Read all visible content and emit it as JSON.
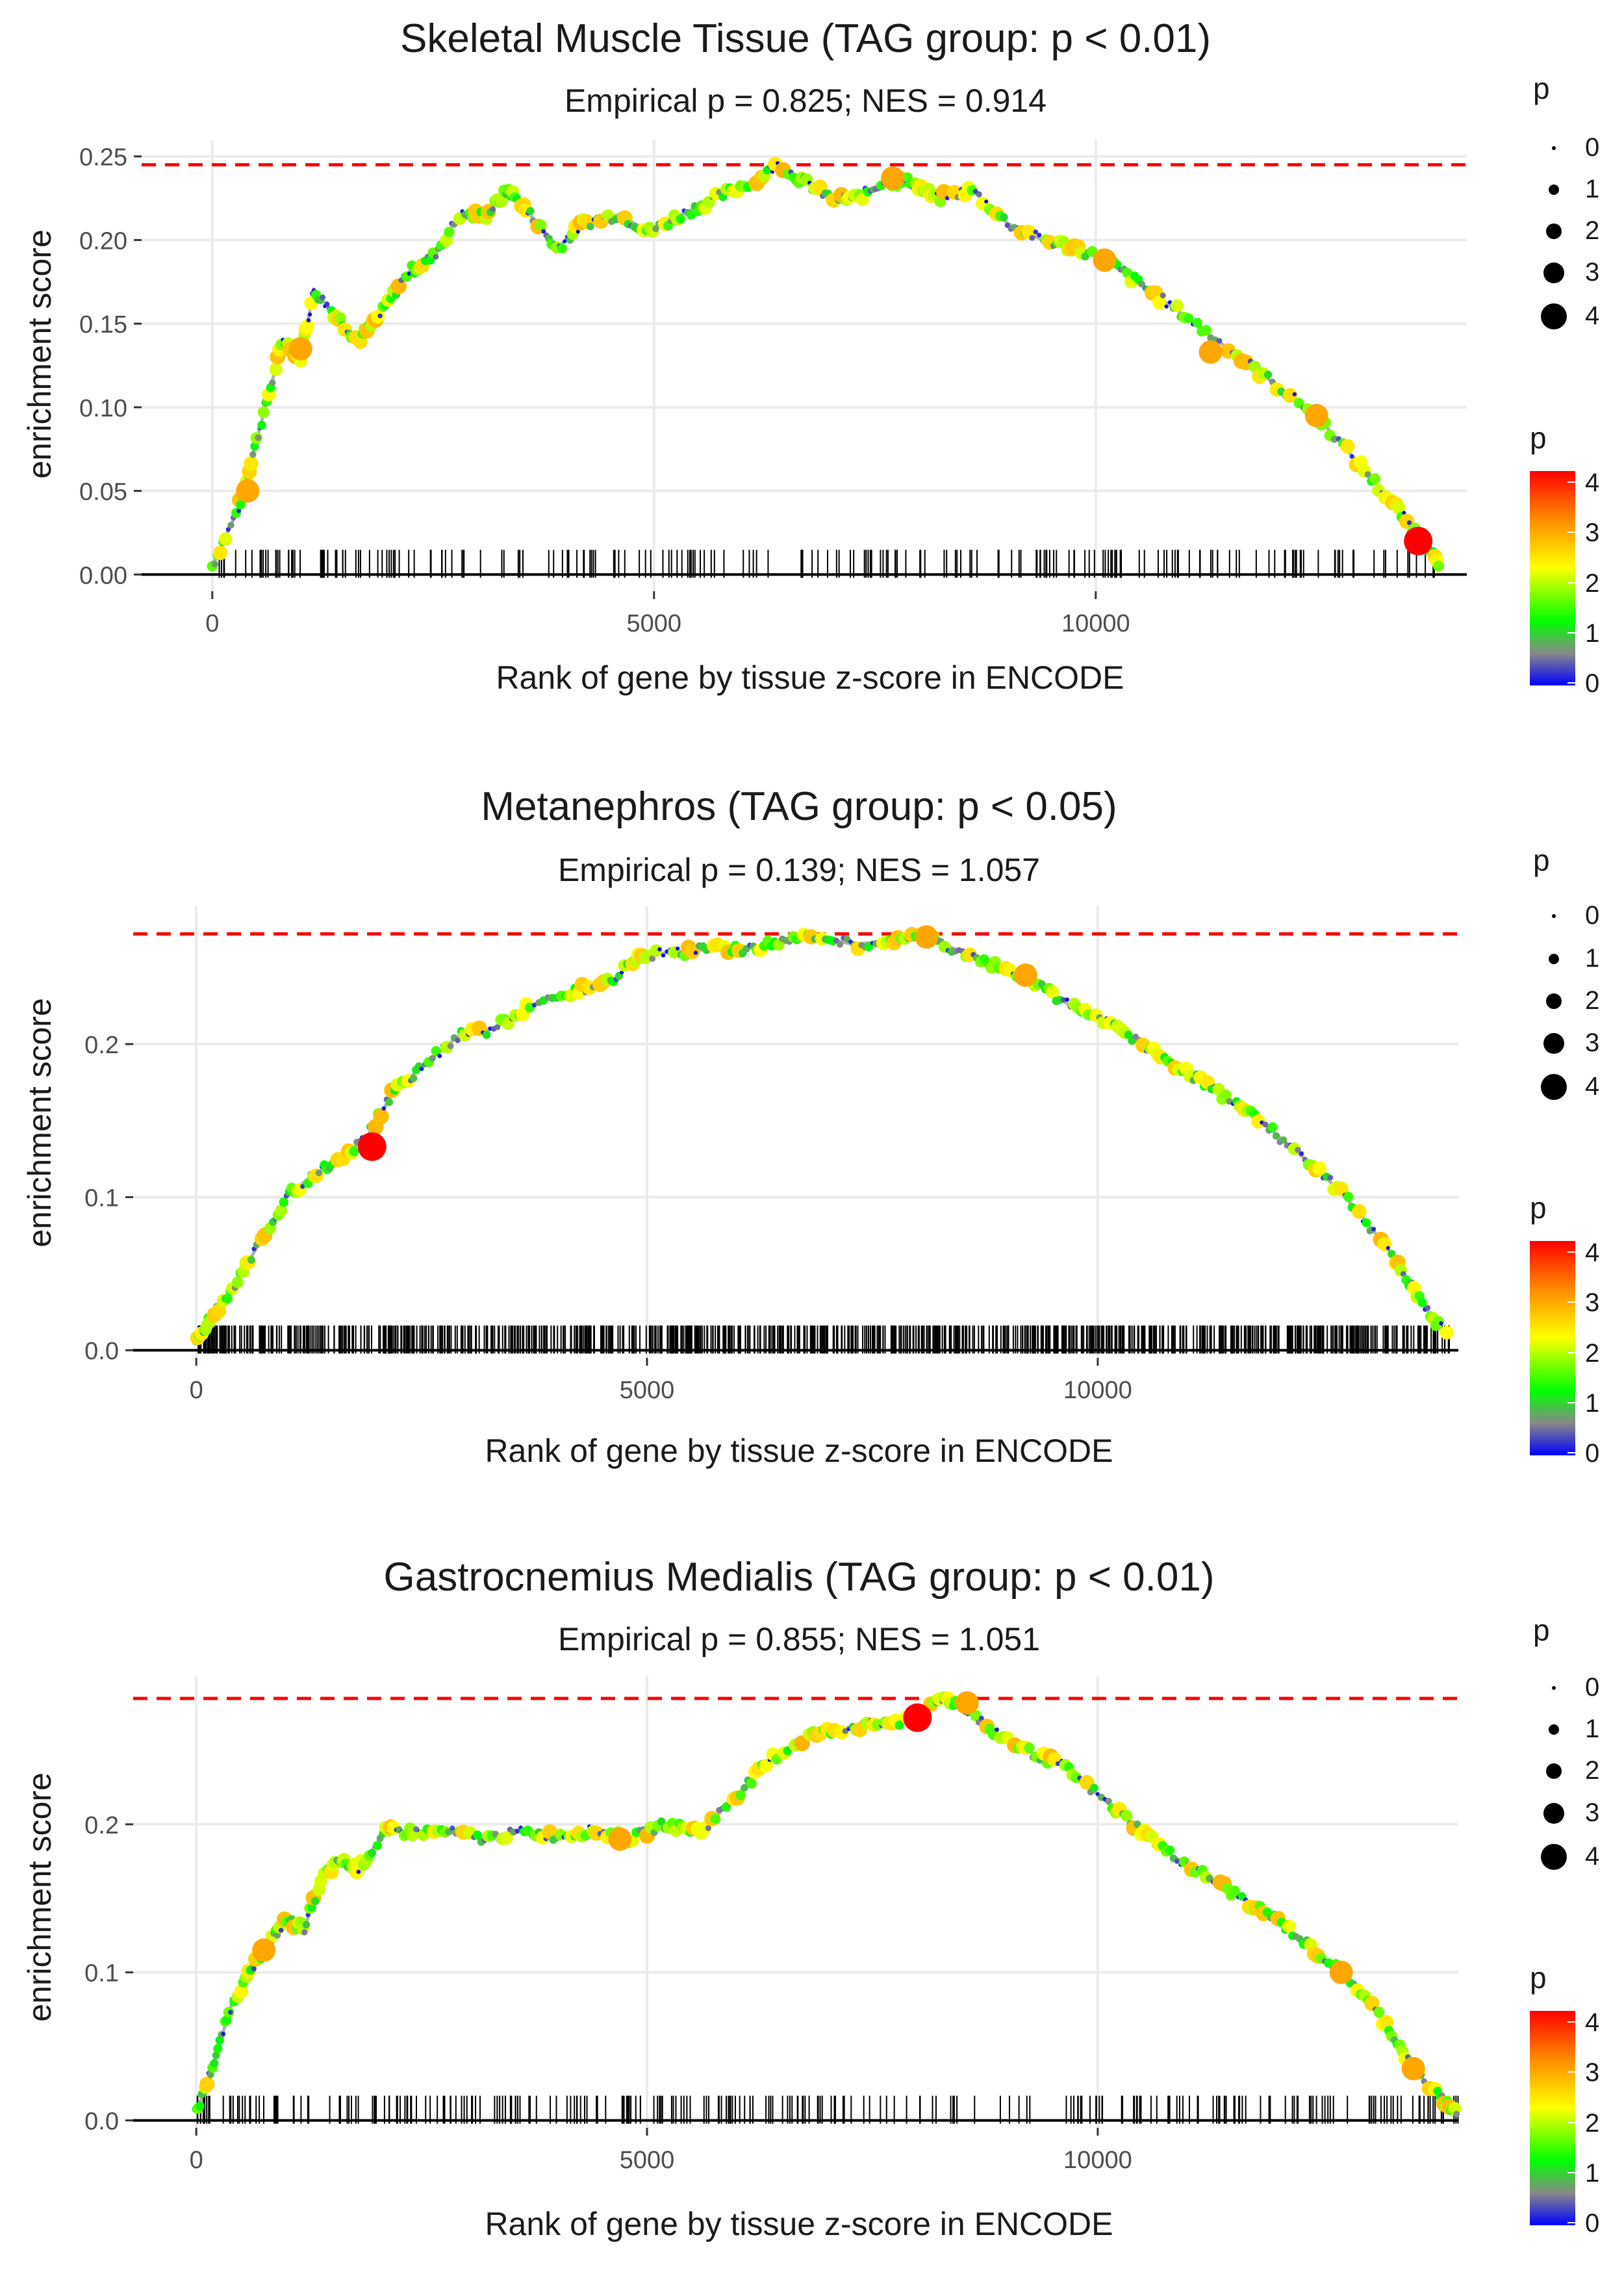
{
  "legend": {
    "size_title": "p",
    "size_levels": [
      "0",
      "1",
      "2",
      "3",
      "4"
    ],
    "color_title": "p",
    "color_ticks": [
      "4",
      "3",
      "2",
      "1",
      "0"
    ],
    "gradient_colors": [
      "#ff0000",
      "#ff8800",
      "#ffff00",
      "#00ff00",
      "#888888",
      "#0000ff"
    ]
  },
  "style": {
    "threshold_color": "#ff0000",
    "line_color": "#b0b0b0",
    "grid_color": "#ebebeb",
    "text_color": "#1a1a1a",
    "axis_text_color": "#4d4d4d"
  },
  "chart_data": [
    {
      "type": "line",
      "title": "Skeletal Muscle Tissue (TAG group: p < 0.01)",
      "subtitle": "Empirical p = 0.825; NES = 0.914",
      "xlabel": "Rank of gene by tissue z-score in ENCODE",
      "ylabel": "enrichment score",
      "xlim": [
        -800,
        14200
      ],
      "ylim": [
        -0.01,
        0.26
      ],
      "xticks": [
        0,
        5000,
        10000
      ],
      "xtick_labels": [
        "0",
        "5000",
        "10000"
      ],
      "yticks": [
        0,
        0.05,
        0.1,
        0.15,
        0.2,
        0.25
      ],
      "ytick_labels": [
        "0.00",
        "0.05",
        "0.10",
        "0.15",
        "0.20",
        "0.25"
      ],
      "max_es": 0.245,
      "series": [
        {
          "name": "enrichment score",
          "x": [
            0,
            300,
            400,
            600,
            800,
            1000,
            1150,
            1400,
            1650,
            1900,
            2200,
            2500,
            2800,
            3100,
            3350,
            3600,
            3900,
            4200,
            4600,
            4950,
            5300,
            5700,
            6100,
            6400,
            6700,
            7000,
            7300,
            7600,
            7900,
            8200,
            8600,
            9000,
            9400,
            9800,
            10200,
            10600,
            11000,
            11500,
            12000,
            12500,
            13000,
            13400,
            13700,
            13900
          ],
          "y": [
            0.005,
            0.04,
            0.06,
            0.1,
            0.14,
            0.13,
            0.17,
            0.155,
            0.14,
            0.155,
            0.18,
            0.19,
            0.215,
            0.215,
            0.23,
            0.215,
            0.195,
            0.21,
            0.215,
            0.205,
            0.215,
            0.225,
            0.235,
            0.245,
            0.235,
            0.225,
            0.225,
            0.235,
            0.235,
            0.225,
            0.23,
            0.21,
            0.2,
            0.195,
            0.185,
            0.17,
            0.155,
            0.135,
            0.115,
            0.095,
            0.065,
            0.04,
            0.02,
            0.005
          ]
        }
      ],
      "highlight_points": [
        {
          "x": 400,
          "y": 0.05,
          "p": 3
        },
        {
          "x": 1000,
          "y": 0.135,
          "p": 3
        },
        {
          "x": 7700,
          "y": 0.237,
          "p": 3
        },
        {
          "x": 10100,
          "y": 0.188,
          "p": 3
        },
        {
          "x": 11300,
          "y": 0.133,
          "p": 3
        },
        {
          "x": 12500,
          "y": 0.095,
          "p": 3
        },
        {
          "x": 13650,
          "y": 0.02,
          "p": 4
        }
      ],
      "rug_count": 220
    },
    {
      "type": "line",
      "title": "Metanephros (TAG group: p < 0.05)",
      "subtitle": "Empirical p = 0.139; NES = 1.057",
      "xlabel": "Rank of gene by tissue z-score in ENCODE",
      "ylabel": "enrichment score",
      "xlim": [
        -700,
        14000
      ],
      "ylim": [
        -0.005,
        0.29
      ],
      "xticks": [
        0,
        5000,
        10000
      ],
      "xtick_labels": [
        "0",
        "5000",
        "10000"
      ],
      "yticks": [
        0,
        0.1,
        0.2
      ],
      "ytick_labels": [
        "0.0",
        "0.1",
        "0.2"
      ],
      "max_es": 0.272,
      "series": [
        {
          "name": "enrichment score",
          "x": [
            0,
            150,
            400,
            700,
            1000,
            1300,
            1600,
            1900,
            2200,
            2500,
            2900,
            3300,
            3700,
            4200,
            4600,
            4900,
            5300,
            5700,
            6100,
            6500,
            6900,
            7300,
            7700,
            8100,
            8500,
            8900,
            9300,
            9700,
            10100,
            10500,
            10900,
            11300,
            11700,
            12100,
            12500,
            12900,
            13300,
            13600,
            13900
          ],
          "y": [
            0.005,
            0.02,
            0.04,
            0.07,
            0.1,
            0.115,
            0.125,
            0.14,
            0.17,
            0.185,
            0.205,
            0.21,
            0.225,
            0.235,
            0.24,
            0.258,
            0.26,
            0.262,
            0.262,
            0.268,
            0.27,
            0.265,
            0.268,
            0.27,
            0.26,
            0.25,
            0.24,
            0.225,
            0.215,
            0.2,
            0.185,
            0.17,
            0.155,
            0.135,
            0.115,
            0.09,
            0.06,
            0.03,
            0.008
          ]
        }
      ],
      "highlight_points": [
        {
          "x": 1950,
          "y": 0.133,
          "p": 4
        },
        {
          "x": 8100,
          "y": 0.27,
          "p": 3
        },
        {
          "x": 9200,
          "y": 0.245,
          "p": 3
        }
      ],
      "rug_count": 900
    },
    {
      "type": "line",
      "title": "Gastrocnemius Medialis (TAG group: p < 0.01)",
      "subtitle": "Empirical p = 0.855; NES = 1.051",
      "xlabel": "Rank of gene by tissue z-score in ENCODE",
      "ylabel": "enrichment score",
      "xlim": [
        -700,
        14000
      ],
      "ylim": [
        -0.005,
        0.3
      ],
      "xticks": [
        0,
        5000,
        10000
      ],
      "xtick_labels": [
        "0",
        "5000",
        "10000"
      ],
      "yticks": [
        0,
        0.1,
        0.2
      ],
      "ytick_labels": [
        "0.0",
        "0.1",
        "0.2"
      ],
      "max_es": 0.285,
      "series": [
        {
          "name": "enrichment score",
          "x": [
            0,
            200,
            400,
            600,
            800,
            1000,
            1200,
            1400,
            1600,
            1800,
            2100,
            2400,
            2800,
            3200,
            3600,
            4000,
            4400,
            4800,
            5200,
            5600,
            6000,
            6400,
            6800,
            7200,
            7600,
            8000,
            8300,
            8500,
            8800,
            9200,
            9600,
            10000,
            10400,
            10800,
            11200,
            11600,
            12000,
            12400,
            12800,
            13200,
            13500,
            13800,
            14000
          ],
          "y": [
            0.005,
            0.04,
            0.08,
            0.1,
            0.12,
            0.135,
            0.13,
            0.165,
            0.175,
            0.17,
            0.195,
            0.195,
            0.195,
            0.19,
            0.195,
            0.192,
            0.196,
            0.19,
            0.2,
            0.195,
            0.22,
            0.245,
            0.26,
            0.265,
            0.268,
            0.272,
            0.285,
            0.28,
            0.265,
            0.25,
            0.24,
            0.22,
            0.2,
            0.18,
            0.165,
            0.15,
            0.135,
            0.115,
            0.095,
            0.065,
            0.035,
            0.015,
            0.005
          ]
        }
      ],
      "highlight_points": [
        {
          "x": 750,
          "y": 0.115,
          "p": 3
        },
        {
          "x": 4700,
          "y": 0.19,
          "p": 3
        },
        {
          "x": 8000,
          "y": 0.272,
          "p": 4
        },
        {
          "x": 8550,
          "y": 0.282,
          "p": 3
        },
        {
          "x": 12700,
          "y": 0.1,
          "p": 3
        },
        {
          "x": 13500,
          "y": 0.035,
          "p": 3
        }
      ],
      "rug_count": 280
    }
  ]
}
